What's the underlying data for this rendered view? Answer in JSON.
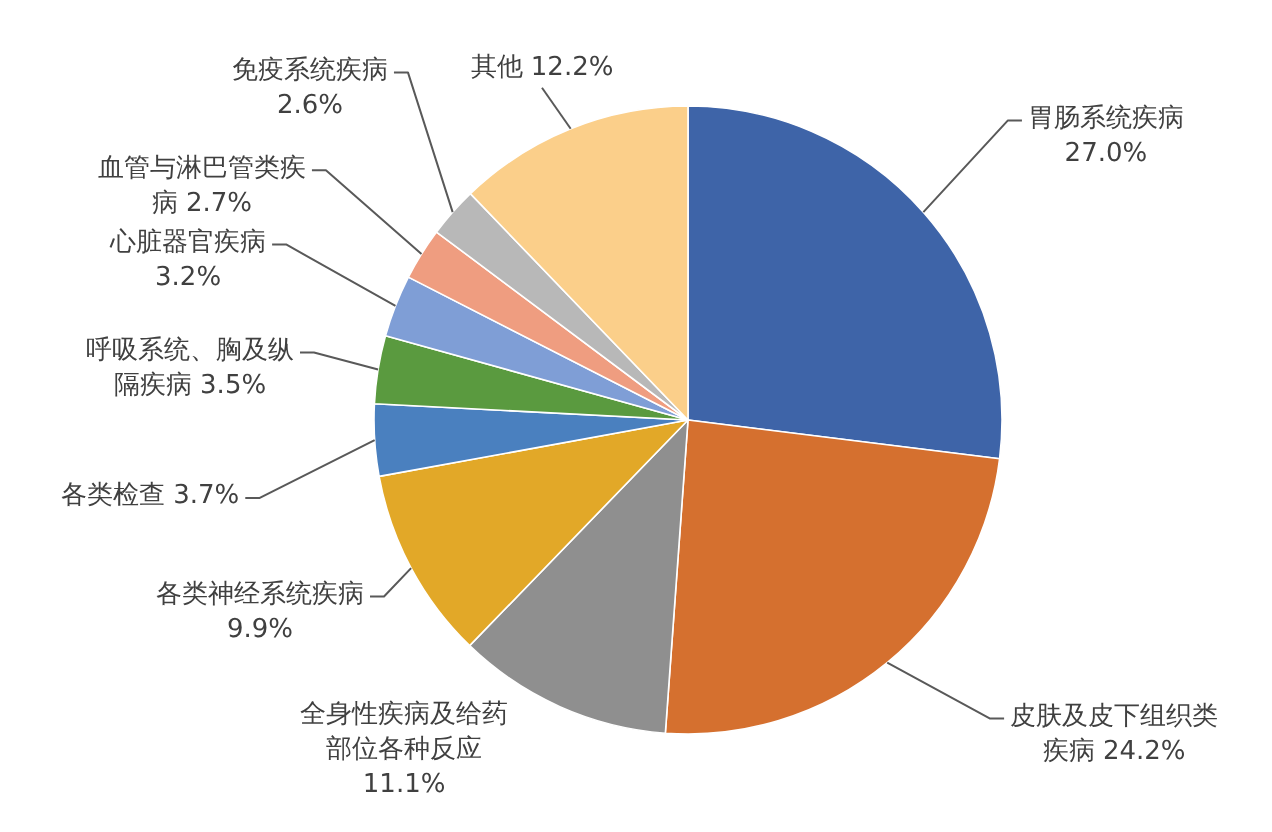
{
  "chart_data": {
    "type": "pie",
    "categories": [
      "胃肠系统疾病",
      "皮肤及皮下组织类疾病",
      "全身性疾病及给药部位各种反应",
      "各类神经系统疾病",
      "各类检查",
      "呼吸系统、胸及纵隔疾病",
      "心脏器官疾病",
      "血管与淋巴管类疾病",
      "免疫系统疾病",
      "其他"
    ],
    "values": [
      27.0,
      24.2,
      11.1,
      9.9,
      3.7,
      3.5,
      3.2,
      2.7,
      2.6,
      12.2
    ],
    "value_labels": [
      "27.0%",
      "24.2%",
      "11.1%",
      "9.9%",
      "3.7%",
      "3.5%",
      "3.2%",
      "2.7%",
      "2.6%",
      "12.2%"
    ],
    "colors": [
      "#3e64a8",
      "#d5702f",
      "#8f8f8f",
      "#e2a828",
      "#4a80bf",
      "#5a9a3f",
      "#7f9ed6",
      "#ef9d80",
      "#b8b8b8",
      "#fbcf8a"
    ]
  }
}
